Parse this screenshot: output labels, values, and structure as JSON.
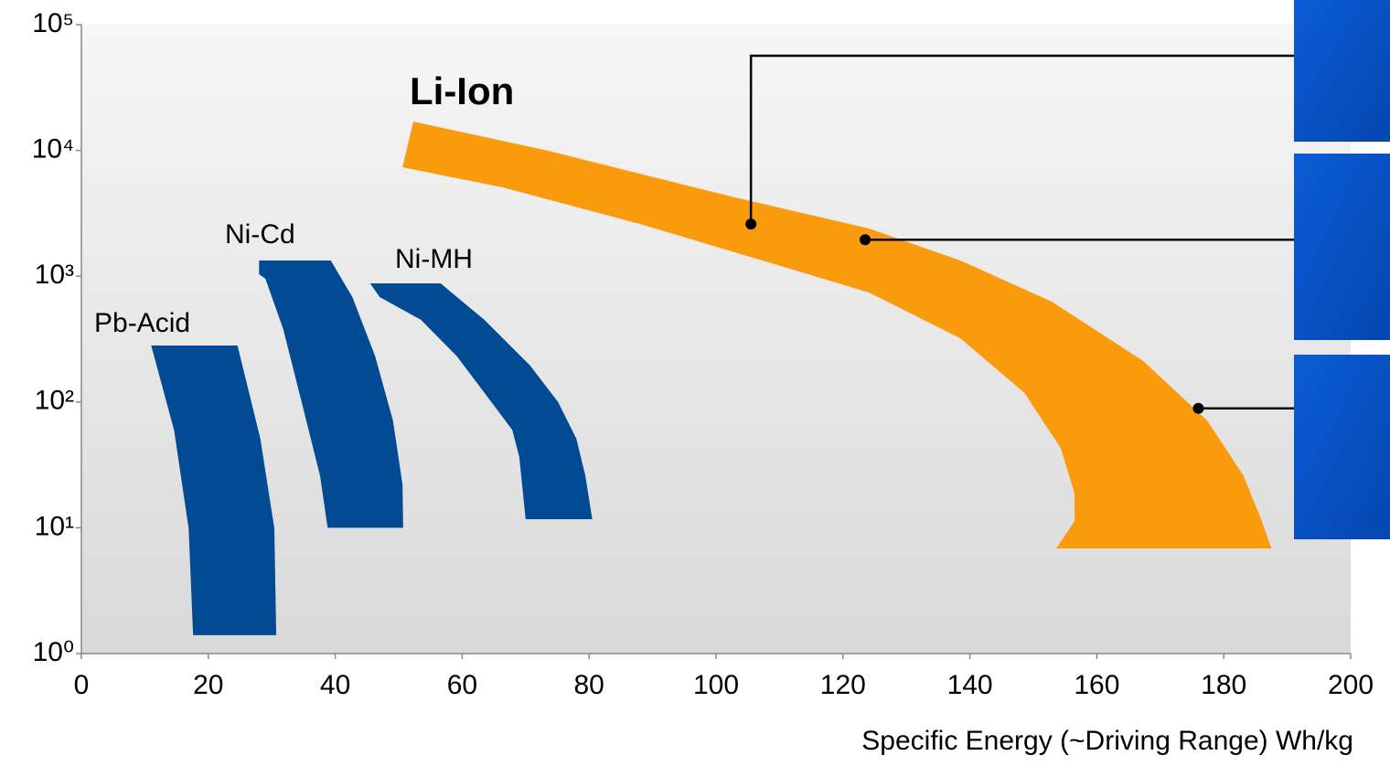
{
  "chart_data": {
    "type": "region",
    "xlabel": "Specific Energy (~Driving Range) Wh/kg",
    "xlim": [
      0,
      200
    ],
    "xticks": [
      0,
      20,
      40,
      60,
      80,
      100,
      120,
      140,
      160,
      180,
      200
    ],
    "ylim": [
      1,
      100000
    ],
    "log_y": true,
    "grid": false,
    "yticks": [
      {
        "value": 1,
        "label": "10⁰"
      },
      {
        "value": 10,
        "label": "10¹"
      },
      {
        "value": 100,
        "label": "10²"
      },
      {
        "value": 1000,
        "label": "10³"
      },
      {
        "value": 10000,
        "label": "10⁴"
      },
      {
        "value": 100000,
        "label": "10⁵"
      }
    ],
    "series": [
      {
        "name": "Pb-Acid",
        "color": "#004b93",
        "x": [
          11,
          24.6,
          28.2,
          30.4,
          30.7,
          17.6,
          16.9,
          14.6
        ],
        "y": [
          281,
          281,
          51,
          9.9,
          1.4,
          1.4,
          9.9,
          60
        ]
      },
      {
        "name": "Ni-Cd",
        "color": "#004b93",
        "x": [
          28,
          39.3,
          42.7,
          46.3,
          49.1,
          50.6,
          50.7,
          38.8,
          37.6,
          34.7,
          31.8,
          29,
          28
        ],
        "y": [
          1334,
          1334,
          683,
          230,
          71,
          22,
          10,
          10,
          26,
          100,
          380,
          955,
          1037
        ]
      },
      {
        "name": "Ni-MH",
        "color": "#004b93",
        "x": [
          45.5,
          56.6,
          63.5,
          70.7,
          75.1,
          78,
          79.4,
          80.5,
          70,
          69,
          67.9,
          59.2,
          53.5,
          47
        ],
        "y": [
          877,
          877,
          450,
          195,
          100,
          51,
          26,
          11.7,
          11.7,
          36.5,
          60,
          230,
          450,
          683
        ]
      },
      {
        "name": "Li-Ion",
        "color": "#f99b0c",
        "x": [
          52.3,
          73.6,
          102.4,
          124.1,
          138.5,
          152.9,
          167.3,
          177.4,
          183.1,
          186,
          187.5,
          153.6,
          156.5,
          156.5,
          154.3,
          148.6,
          138.5,
          124.1,
          109.7,
          88,
          66.4,
          50.6
        ],
        "y": [
          16980,
          9930,
          4300,
          2395,
          1334,
          628,
          212,
          71,
          26,
          11.3,
          6.85,
          6.85,
          11.3,
          18.7,
          43,
          118,
          321,
          743,
          1227,
          2605,
          5085,
          7350
        ]
      }
    ],
    "points": {
      "color": "#000000",
      "x": [
        105.5,
        123.5,
        176
      ],
      "y": [
        2600,
        1950,
        89
      ]
    }
  }
}
